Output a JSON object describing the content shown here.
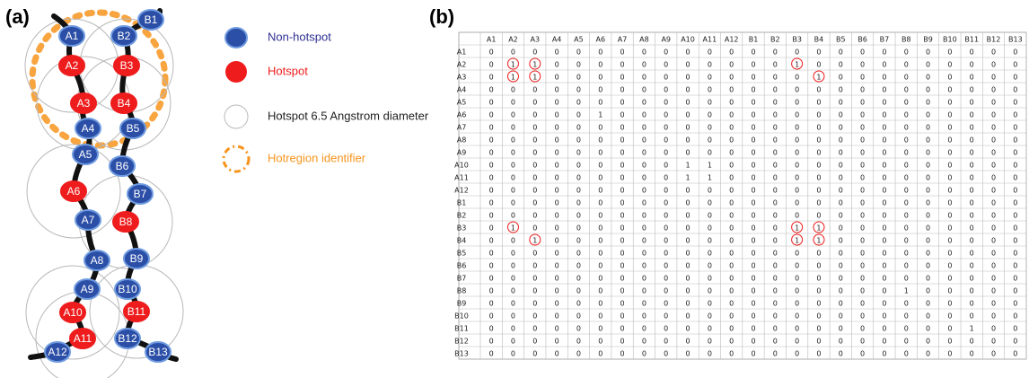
{
  "panel_a": {
    "label": "(a)",
    "node_style": {
      "non_hotspot": "#2b4ea6",
      "hotspot": "#ee1c1c",
      "outline": "#6f9be0",
      "circle": "#b8b8b8",
      "hotregion": "#f7941d"
    },
    "nodes": [
      {
        "label": "A1",
        "hotspot": false
      },
      {
        "label": "A2",
        "hotspot": true
      },
      {
        "label": "A3",
        "hotspot": true
      },
      {
        "label": "A4",
        "hotspot": false
      },
      {
        "label": "A5",
        "hotspot": false
      },
      {
        "label": "A6",
        "hotspot": true
      },
      {
        "label": "A7",
        "hotspot": false
      },
      {
        "label": "A8",
        "hotspot": false
      },
      {
        "label": "A9",
        "hotspot": false
      },
      {
        "label": "A10",
        "hotspot": true
      },
      {
        "label": "A11",
        "hotspot": true
      },
      {
        "label": "A12",
        "hotspot": false
      },
      {
        "label": "B1",
        "hotspot": false
      },
      {
        "label": "B2",
        "hotspot": false
      },
      {
        "label": "B3",
        "hotspot": true
      },
      {
        "label": "B4",
        "hotspot": true
      },
      {
        "label": "B5",
        "hotspot": false
      },
      {
        "label": "B6",
        "hotspot": false
      },
      {
        "label": "B7",
        "hotspot": false
      },
      {
        "label": "B8",
        "hotspot": true
      },
      {
        "label": "B9",
        "hotspot": false
      },
      {
        "label": "B10",
        "hotspot": false
      },
      {
        "label": "B11",
        "hotspot": true
      },
      {
        "label": "B12",
        "hotspot": false
      },
      {
        "label": "B13",
        "hotspot": false
      }
    ],
    "legend": [
      {
        "label": "Non-hotspot",
        "color": "#2e3192"
      },
      {
        "label": "Hotspot",
        "color": "#ee1c1c"
      },
      {
        "label": "Hotspot 6.5 Angstrom diameter",
        "color": "#222222"
      },
      {
        "label": "Hotregion identifier",
        "color": "#f7941d"
      }
    ]
  },
  "panel_b": {
    "label": "(b)",
    "columns": [
      "A1",
      "A2",
      "A3",
      "A4",
      "A5",
      "A6",
      "A7",
      "A8",
      "A9",
      "A10",
      "A11",
      "A12",
      "B1",
      "B2",
      "B3",
      "B4",
      "B5",
      "B6",
      "B7",
      "B8",
      "B9",
      "B10",
      "B11",
      "B12",
      "B13"
    ],
    "rows": [
      {
        "label": "A1",
        "cells": [
          0,
          0,
          0,
          0,
          0,
          0,
          0,
          0,
          0,
          0,
          0,
          0,
          0,
          0,
          0,
          0,
          0,
          0,
          0,
          0,
          0,
          0,
          0,
          0,
          0
        ]
      },
      {
        "label": "A2",
        "cells": [
          0,
          1,
          1,
          0,
          0,
          0,
          0,
          0,
          0,
          0,
          0,
          0,
          0,
          0,
          1,
          0,
          0,
          0,
          0,
          0,
          0,
          0,
          0,
          0,
          0
        ]
      },
      {
        "label": "A3",
        "cells": [
          0,
          1,
          1,
          0,
          0,
          0,
          0,
          0,
          0,
          0,
          0,
          0,
          0,
          0,
          0,
          1,
          0,
          0,
          0,
          0,
          0,
          0,
          0,
          0,
          0
        ]
      },
      {
        "label": "A4",
        "cells": [
          0,
          0,
          0,
          0,
          0,
          0,
          0,
          0,
          0,
          0,
          0,
          0,
          0,
          0,
          0,
          0,
          0,
          0,
          0,
          0,
          0,
          0,
          0,
          0,
          0
        ]
      },
      {
        "label": "A5",
        "cells": [
          0,
          0,
          0,
          0,
          0,
          0,
          0,
          0,
          0,
          0,
          0,
          0,
          0,
          0,
          0,
          0,
          0,
          0,
          0,
          0,
          0,
          0,
          0,
          0,
          0
        ]
      },
      {
        "label": "A6",
        "cells": [
          0,
          0,
          0,
          0,
          0,
          1,
          0,
          0,
          0,
          0,
          0,
          0,
          0,
          0,
          0,
          0,
          0,
          0,
          0,
          0,
          0,
          0,
          0,
          0,
          0
        ]
      },
      {
        "label": "A7",
        "cells": [
          0,
          0,
          0,
          0,
          0,
          0,
          0,
          0,
          0,
          0,
          0,
          0,
          0,
          0,
          0,
          0,
          0,
          0,
          0,
          0,
          0,
          0,
          0,
          0,
          0
        ]
      },
      {
        "label": "A8",
        "cells": [
          0,
          0,
          0,
          0,
          0,
          0,
          0,
          0,
          0,
          0,
          0,
          0,
          0,
          0,
          0,
          0,
          0,
          0,
          0,
          0,
          0,
          0,
          0,
          0,
          0
        ]
      },
      {
        "label": "A9",
        "cells": [
          0,
          0,
          0,
          0,
          0,
          0,
          0,
          0,
          0,
          0,
          0,
          0,
          0,
          0,
          0,
          0,
          0,
          0,
          0,
          0,
          0,
          0,
          0,
          0,
          0
        ]
      },
      {
        "label": "A10",
        "cells": [
          0,
          0,
          0,
          0,
          0,
          0,
          0,
          0,
          0,
          1,
          1,
          0,
          0,
          0,
          0,
          0,
          0,
          0,
          0,
          0,
          0,
          0,
          0,
          0,
          0
        ]
      },
      {
        "label": "A11",
        "cells": [
          0,
          0,
          0,
          0,
          0,
          0,
          0,
          0,
          0,
          1,
          1,
          0,
          0,
          0,
          0,
          0,
          0,
          0,
          0,
          0,
          0,
          0,
          0,
          0,
          0
        ]
      },
      {
        "label": "A12",
        "cells": [
          0,
          0,
          0,
          0,
          0,
          0,
          0,
          0,
          0,
          0,
          0,
          0,
          0,
          0,
          0,
          0,
          0,
          0,
          0,
          0,
          0,
          0,
          0,
          0,
          0
        ]
      },
      {
        "label": "B1",
        "cells": [
          0,
          0,
          0,
          0,
          0,
          0,
          0,
          0,
          0,
          0,
          0,
          0,
          0,
          0,
          0,
          0,
          0,
          0,
          0,
          0,
          0,
          0,
          0,
          0,
          0
        ]
      },
      {
        "label": "B2",
        "cells": [
          0,
          0,
          0,
          0,
          0,
          0,
          0,
          0,
          0,
          0,
          0,
          0,
          0,
          0,
          0,
          0,
          0,
          0,
          0,
          0,
          0,
          0,
          0,
          0,
          0
        ]
      },
      {
        "label": "B3",
        "cells": [
          0,
          1,
          0,
          0,
          0,
          0,
          0,
          0,
          0,
          0,
          0,
          0,
          0,
          0,
          1,
          1,
          0,
          0,
          0,
          0,
          0,
          0,
          0,
          0,
          0
        ]
      },
      {
        "label": "B4",
        "cells": [
          0,
          0,
          1,
          0,
          0,
          0,
          0,
          0,
          0,
          0,
          0,
          0,
          0,
          0,
          1,
          1,
          0,
          0,
          0,
          0,
          0,
          0,
          0,
          0,
          0
        ]
      },
      {
        "label": "B5",
        "cells": [
          0,
          0,
          0,
          0,
          0,
          0,
          0,
          0,
          0,
          0,
          0,
          0,
          0,
          0,
          0,
          0,
          0,
          0,
          0,
          0,
          0,
          0,
          0,
          0,
          0
        ]
      },
      {
        "label": "B6",
        "cells": [
          0,
          0,
          0,
          0,
          0,
          0,
          0,
          0,
          0,
          0,
          0,
          0,
          0,
          0,
          0,
          0,
          0,
          0,
          0,
          0,
          0,
          0,
          0,
          0,
          0
        ]
      },
      {
        "label": "B7",
        "cells": [
          0,
          0,
          0,
          0,
          0,
          0,
          0,
          0,
          0,
          0,
          0,
          0,
          0,
          0,
          0,
          0,
          0,
          0,
          0,
          0,
          0,
          0,
          0,
          0,
          0
        ]
      },
      {
        "label": "B8",
        "cells": [
          0,
          0,
          0,
          0,
          0,
          0,
          0,
          0,
          0,
          0,
          0,
          0,
          0,
          0,
          0,
          0,
          0,
          0,
          0,
          1,
          0,
          0,
          0,
          0,
          0
        ]
      },
      {
        "label": "B9",
        "cells": [
          0,
          0,
          0,
          0,
          0,
          0,
          0,
          0,
          0,
          0,
          0,
          0,
          0,
          0,
          0,
          0,
          0,
          0,
          0,
          0,
          0,
          0,
          0,
          0,
          0
        ]
      },
      {
        "label": "B10",
        "cells": [
          0,
          0,
          0,
          0,
          0,
          0,
          0,
          0,
          0,
          0,
          0,
          0,
          0,
          0,
          0,
          0,
          0,
          0,
          0,
          0,
          0,
          0,
          0,
          0,
          0
        ]
      },
      {
        "label": "B11",
        "cells": [
          0,
          0,
          0,
          0,
          0,
          0,
          0,
          0,
          0,
          0,
          0,
          0,
          0,
          0,
          0,
          0,
          0,
          0,
          0,
          0,
          0,
          0,
          1,
          0,
          0
        ]
      },
      {
        "label": "B12",
        "cells": [
          0,
          0,
          0,
          0,
          0,
          0,
          0,
          0,
          0,
          0,
          0,
          0,
          0,
          0,
          0,
          0,
          0,
          0,
          0,
          0,
          0,
          0,
          0,
          0,
          0
        ]
      },
      {
        "label": "B13",
        "cells": [
          0,
          0,
          0,
          0,
          0,
          0,
          0,
          0,
          0,
          0,
          0,
          0,
          0,
          0,
          0,
          0,
          0,
          0,
          0,
          0,
          0,
          0,
          0,
          0,
          0
        ]
      }
    ],
    "circled": [
      [
        1,
        1
      ],
      [
        1,
        2
      ],
      [
        1,
        14
      ],
      [
        2,
        1
      ],
      [
        2,
        2
      ],
      [
        2,
        15
      ],
      [
        14,
        1
      ],
      [
        14,
        14
      ],
      [
        14,
        15
      ],
      [
        15,
        2
      ],
      [
        15,
        14
      ],
      [
        15,
        15
      ]
    ],
    "circle_color": "#ee1c1c"
  }
}
